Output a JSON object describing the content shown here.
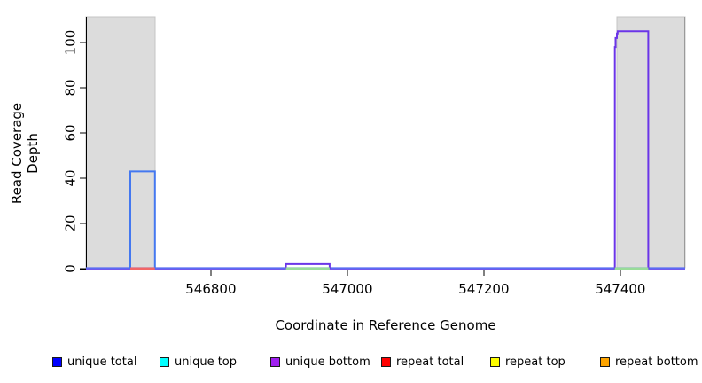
{
  "chart_data": {
    "type": "line",
    "title": "",
    "xlabel": "Coordinate in Reference Genome",
    "ylabel": "Read Coverage Depth",
    "xlim": [
      546617,
      547495
    ],
    "ylim": [
      0,
      110
    ],
    "x_ticks": [
      546800,
      547000,
      547200,
      547400
    ],
    "y_ticks": [
      0,
      20,
      40,
      60,
      80,
      100
    ],
    "grid": false,
    "legend_position": "bottom",
    "shaded_regions": [
      {
        "from": 546617,
        "to": 546718,
        "color": "#dcdcdc"
      },
      {
        "from": 547395,
        "to": 547495,
        "color": "#dcdcdc"
      }
    ],
    "zero_line": {
      "base_colors": [
        "#7b52ea",
        "#5b6cf2"
      ],
      "overrides": [
        {
          "color": "#f26666",
          "from": 546682,
          "to": 546718
        },
        {
          "color": "#98dc98",
          "from": 546910,
          "to": 546974
        },
        {
          "color": "#98dc98",
          "from": 547392,
          "to": 547441
        }
      ]
    },
    "series": [
      {
        "name": "unique total",
        "legend_color": "#0000ff",
        "line_color": "#4478f0",
        "excursions": [
          [
            [
              546682,
              0
            ],
            [
              546682,
              43
            ],
            [
              546718,
              43
            ],
            [
              546718,
              0
            ]
          ]
        ]
      },
      {
        "name": "unique top",
        "legend_color": "#00ffff",
        "line_color": "#98dc98",
        "excursions": []
      },
      {
        "name": "unique bottom",
        "legend_color": "#a020f0",
        "line_color": "#6b35e8",
        "excursions": [
          [
            [
              546910,
              0
            ],
            [
              546910,
              2
            ],
            [
              546974,
              2
            ],
            [
              546974,
              0
            ]
          ],
          [
            [
              547392,
              0
            ],
            [
              547392,
              98
            ],
            [
              547393,
              98
            ],
            [
              547393,
              102
            ],
            [
              547395,
              102
            ],
            [
              547395,
              104
            ],
            [
              547396,
              104
            ],
            [
              547396,
              105
            ],
            [
              547441,
              105
            ],
            [
              547441,
              0
            ]
          ]
        ]
      },
      {
        "name": "repeat total",
        "legend_color": "#ff0000",
        "line_color": "#f26666",
        "excursions": []
      },
      {
        "name": "repeat top",
        "legend_color": "#ffff00",
        "line_color": "#ffff00",
        "excursions": []
      },
      {
        "name": "repeat bottom",
        "legend_color": "#ffa500",
        "line_color": "#ffa500",
        "excursions": []
      }
    ]
  },
  "legend": {
    "items": [
      {
        "label": "unique total",
        "color": "#0000ff"
      },
      {
        "label": "unique top",
        "color": "#00ffff"
      },
      {
        "label": "unique bottom",
        "color": "#a020f0"
      },
      {
        "label": "repeat total",
        "color": "#ff0000"
      },
      {
        "label": "repeat top",
        "color": "#ffff00"
      },
      {
        "label": "repeat bottom",
        "color": "#ffa500"
      }
    ]
  }
}
